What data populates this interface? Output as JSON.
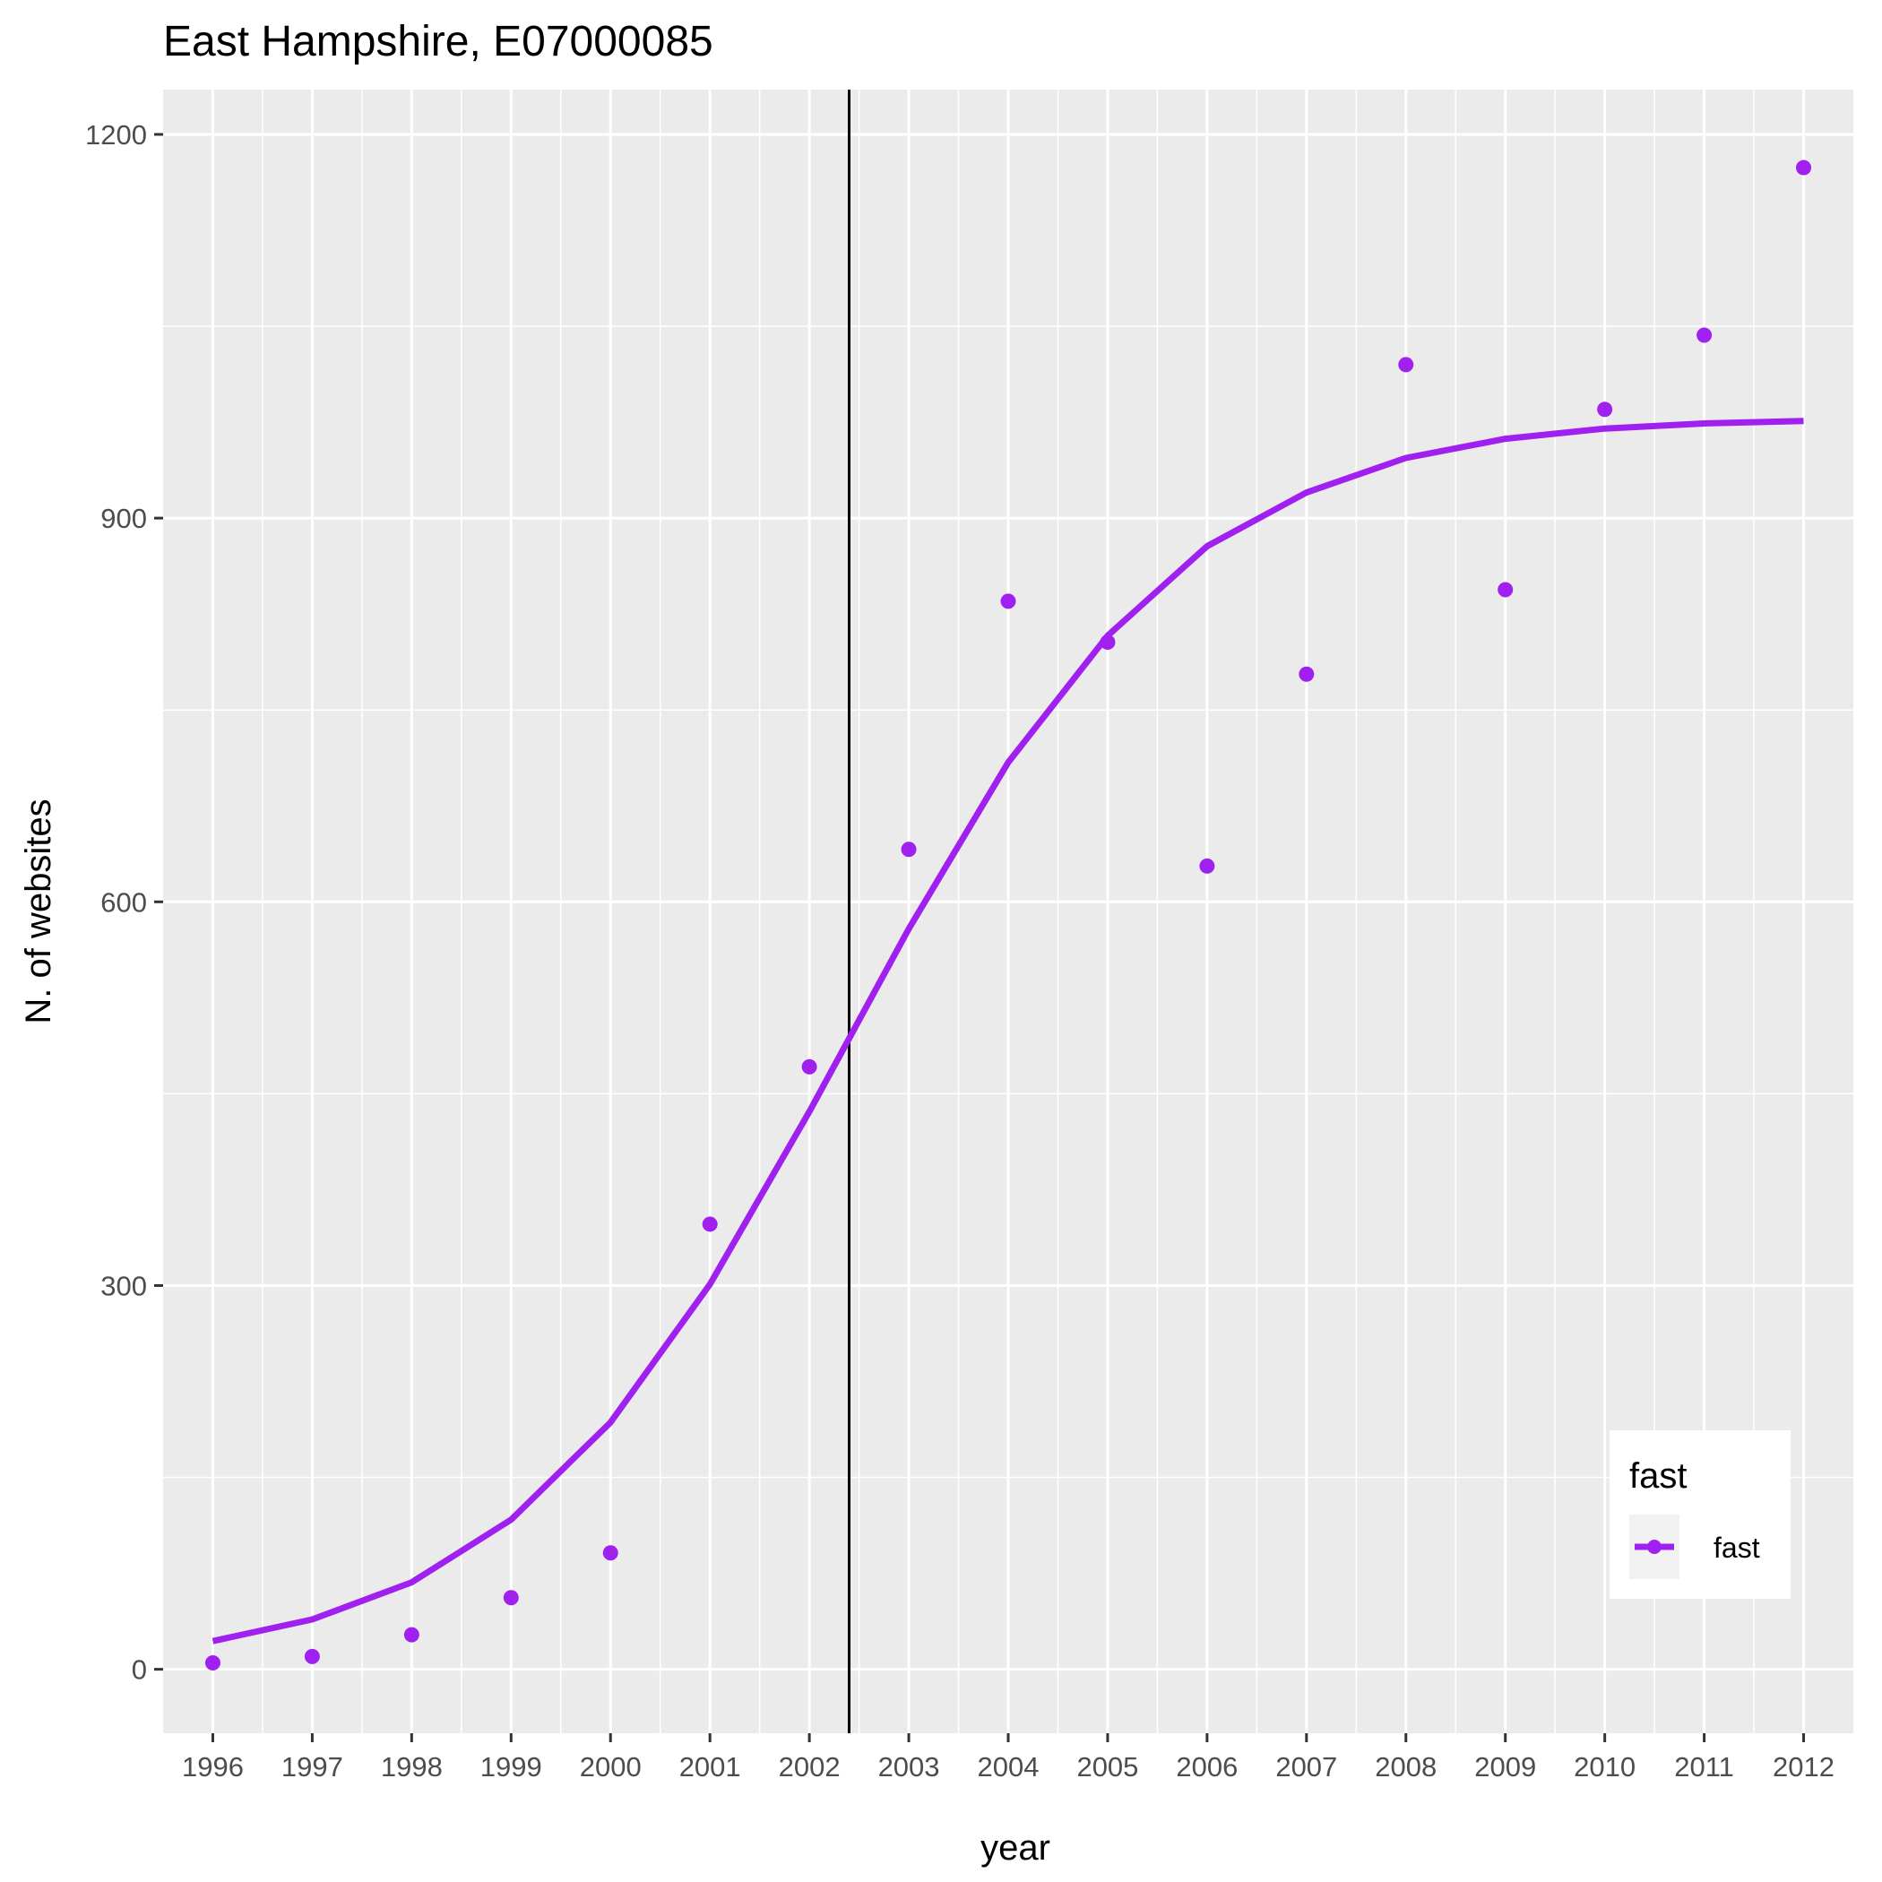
{
  "chart_data": {
    "type": "line",
    "title": "East Hampshire, E07000085",
    "xlabel": "year",
    "ylabel": "N. of websites",
    "x": [
      1996,
      1997,
      1998,
      1999,
      2000,
      2001,
      2002,
      2003,
      2004,
      2005,
      2006,
      2007,
      2008,
      2009,
      2010,
      2011,
      2012
    ],
    "x_tick_labels": [
      "1996",
      "1997",
      "1998",
      "1999",
      "2000",
      "2001",
      "2002",
      "2003",
      "2004",
      "2005",
      "2006",
      "2007",
      "2008",
      "2009",
      "2010",
      "2011",
      "2012"
    ],
    "y_tick_values": [
      0,
      300,
      600,
      900,
      1200
    ],
    "y_tick_labels": [
      "0",
      "300",
      "600",
      "900",
      "1200"
    ],
    "xlim": [
      1995.5,
      2012.5
    ],
    "ylim": [
      -50,
      1235
    ],
    "grid": true,
    "vline_x": 2002.4,
    "series": [
      {
        "name": "fast",
        "color": "#a020f0",
        "points": [
          5,
          10,
          27,
          56,
          91,
          348,
          471,
          641,
          835,
          803,
          628,
          778,
          1020,
          844,
          985,
          1043,
          1174
        ],
        "fitted": [
          22,
          39,
          68,
          117,
          193,
          301,
          436,
          579,
          709,
          808,
          878,
          920,
          947,
          962,
          970,
          974,
          976
        ]
      }
    ],
    "legend": {
      "title": "fast",
      "position": "bottom-right",
      "entries": [
        "fast"
      ]
    }
  }
}
